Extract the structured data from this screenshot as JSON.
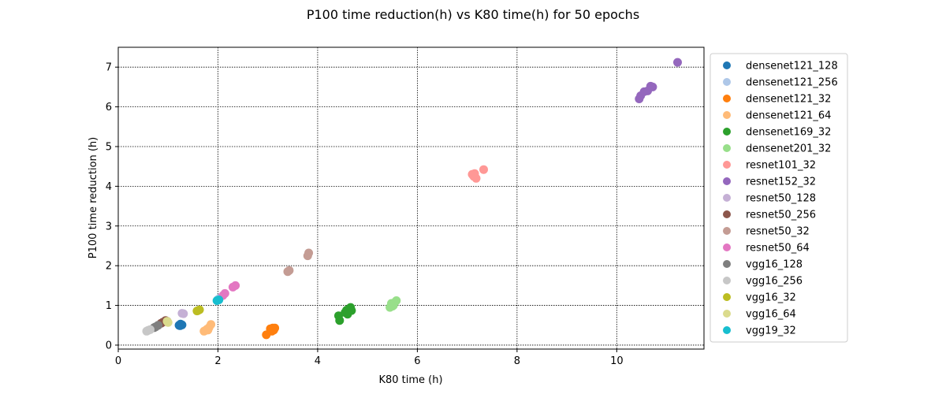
{
  "chart_data": {
    "type": "scatter",
    "title": "P100 time reduction(h) vs K80 time(h) for 50 epochs",
    "xlabel": "K80 time (h)",
    "ylabel": "P100 time reduction (h)",
    "xlim": [
      0,
      11.75
    ],
    "ylim": [
      -0.1,
      7.5
    ],
    "xticks": [
      0,
      2,
      4,
      6,
      8,
      10
    ],
    "yticks": [
      0,
      1,
      2,
      3,
      4,
      5,
      6,
      7
    ],
    "grid": true,
    "legend_position": "outside-right",
    "series": [
      {
        "name": "densenet121_128",
        "color": "#1f77b4",
        "points": [
          [
            1.22,
            0.5
          ],
          [
            1.25,
            0.53
          ],
          [
            1.28,
            0.51
          ],
          [
            1.24,
            0.49
          ]
        ]
      },
      {
        "name": "densenet121_256",
        "color": "#aec7e8",
        "points": [
          [
            2.0,
            1.15
          ],
          [
            2.03,
            1.18
          ]
        ]
      },
      {
        "name": "densenet121_32",
        "color": "#ff7f0e",
        "points": [
          [
            2.97,
            0.26
          ],
          [
            3.08,
            0.35
          ],
          [
            3.1,
            0.43
          ],
          [
            3.14,
            0.43
          ],
          [
            3.05,
            0.41
          ],
          [
            3.12,
            0.38
          ]
        ]
      },
      {
        "name": "densenet121_64",
        "color": "#ffbb78",
        "points": [
          [
            1.72,
            0.35
          ],
          [
            1.78,
            0.4
          ],
          [
            1.82,
            0.44
          ],
          [
            1.86,
            0.52
          ],
          [
            1.75,
            0.37
          ],
          [
            1.8,
            0.38
          ]
        ]
      },
      {
        "name": "densenet169_32",
        "color": "#2ca02c",
        "points": [
          [
            4.42,
            0.74
          ],
          [
            4.44,
            0.62
          ],
          [
            4.55,
            0.82
          ],
          [
            4.6,
            0.78
          ],
          [
            4.63,
            0.92
          ],
          [
            4.66,
            0.95
          ],
          [
            4.68,
            0.87
          ],
          [
            4.58,
            0.88
          ]
        ]
      },
      {
        "name": "densenet201_32",
        "color": "#98df8a",
        "points": [
          [
            5.45,
            0.95
          ],
          [
            5.48,
            1.05
          ],
          [
            5.52,
            1.0
          ],
          [
            5.55,
            1.08
          ],
          [
            5.58,
            1.12
          ],
          [
            5.5,
            0.98
          ]
        ]
      },
      {
        "name": "resnet101_32",
        "color": "#ff9896",
        "points": [
          [
            7.1,
            4.3
          ],
          [
            7.13,
            4.25
          ],
          [
            7.15,
            4.32
          ],
          [
            7.18,
            4.2
          ],
          [
            7.33,
            4.42
          ]
        ]
      },
      {
        "name": "resnet152_32",
        "color": "#9467bd",
        "points": [
          [
            10.45,
            6.2
          ],
          [
            10.48,
            6.28
          ],
          [
            10.55,
            6.38
          ],
          [
            10.62,
            6.4
          ],
          [
            10.68,
            6.52
          ],
          [
            10.72,
            6.5
          ],
          [
            11.22,
            7.12
          ]
        ]
      },
      {
        "name": "resnet50_128",
        "color": "#c5b0d5",
        "points": [
          [
            1.28,
            0.8
          ],
          [
            1.31,
            0.79
          ]
        ]
      },
      {
        "name": "resnet50_256",
        "color": "#8c564b",
        "points": [
          [
            0.9,
            0.58
          ],
          [
            0.95,
            0.62
          ],
          [
            0.98,
            0.6
          ],
          [
            0.86,
            0.55
          ]
        ]
      },
      {
        "name": "resnet50_32",
        "color": "#c49c94",
        "points": [
          [
            3.4,
            1.85
          ],
          [
            3.43,
            1.88
          ],
          [
            3.8,
            2.25
          ],
          [
            3.82,
            2.32
          ]
        ]
      },
      {
        "name": "resnet50_64",
        "color": "#e377c2",
        "points": [
          [
            2.1,
            1.25
          ],
          [
            2.14,
            1.3
          ],
          [
            2.3,
            1.46
          ],
          [
            2.35,
            1.5
          ]
        ]
      },
      {
        "name": "vgg16_128",
        "color": "#7f7f7f",
        "points": [
          [
            0.72,
            0.44
          ],
          [
            0.75,
            0.46
          ],
          [
            0.8,
            0.5
          ]
        ]
      },
      {
        "name": "vgg16_256",
        "color": "#c7c7c7",
        "points": [
          [
            0.57,
            0.35
          ],
          [
            0.6,
            0.37
          ],
          [
            0.64,
            0.39
          ]
        ]
      },
      {
        "name": "vgg16_32",
        "color": "#bcbd22",
        "points": [
          [
            1.6,
            0.87
          ],
          [
            1.63,
            0.89
          ],
          [
            1.58,
            0.86
          ]
        ]
      },
      {
        "name": "vgg16_64",
        "color": "#dbdb8d",
        "points": [
          [
            1.0,
            0.57
          ],
          [
            0.98,
            0.6
          ]
        ]
      },
      {
        "name": "vgg19_32",
        "color": "#17becf",
        "points": [
          [
            1.98,
            1.12
          ],
          [
            2.02,
            1.14
          ]
        ]
      }
    ]
  }
}
